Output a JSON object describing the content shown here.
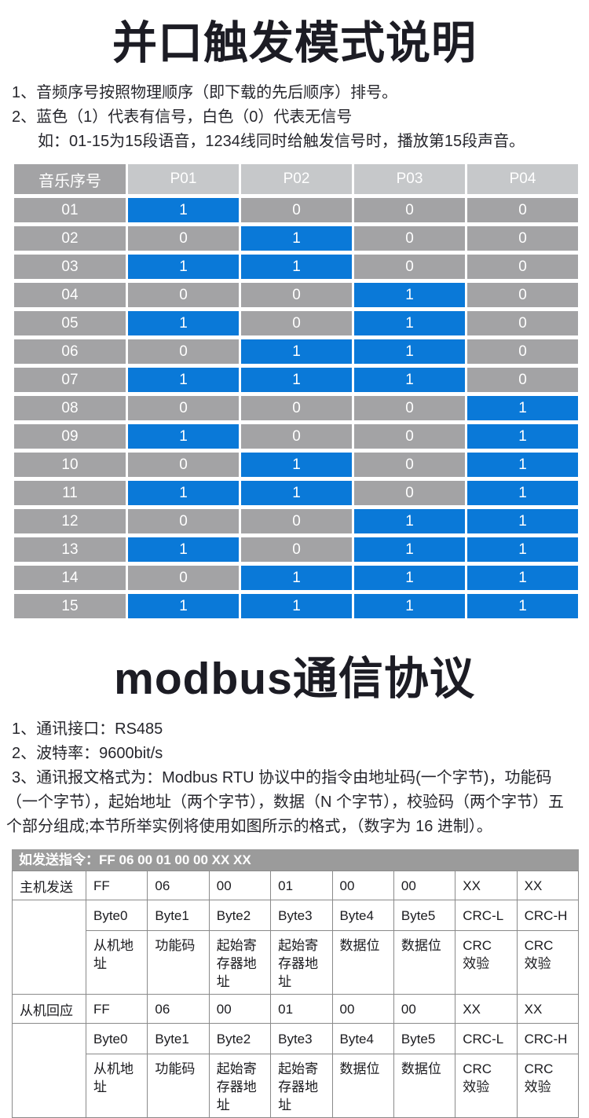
{
  "colors": {
    "signal_on": "#0a79d8",
    "signal_off": "#a3a3a5",
    "header_label_bg": "#a3a3a5",
    "header_col_bg": "#c6c8ca",
    "modbus_header_bg": "#9b9b9b",
    "table_border": "#8a8a8a",
    "text": "#1e1e24"
  },
  "section1": {
    "title": "并口触发模式说明",
    "notes": {
      "line1": "1、音频序号按照物理顺序（即下载的先后顺序）排号。",
      "line2": "2、蓝色（1）代表有信号，白色（0）代表无信号",
      "line3": "如：01-15为15段语音，1234线同时给触发信号时，播放第15段声音。"
    }
  },
  "music_table": {
    "columns": [
      "音乐序号",
      "P01",
      "P02",
      "P03",
      "P04"
    ],
    "legend": {
      "on_value": "1",
      "off_value": "0"
    },
    "rows": [
      {
        "no": "01",
        "signals": [
          1,
          0,
          0,
          0
        ]
      },
      {
        "no": "02",
        "signals": [
          0,
          1,
          0,
          0
        ]
      },
      {
        "no": "03",
        "signals": [
          1,
          1,
          0,
          0
        ]
      },
      {
        "no": "04",
        "signals": [
          0,
          0,
          1,
          0
        ]
      },
      {
        "no": "05",
        "signals": [
          1,
          0,
          1,
          0
        ]
      },
      {
        "no": "06",
        "signals": [
          0,
          1,
          1,
          0
        ]
      },
      {
        "no": "07",
        "signals": [
          1,
          1,
          1,
          0
        ]
      },
      {
        "no": "08",
        "signals": [
          0,
          0,
          0,
          1
        ]
      },
      {
        "no": "09",
        "signals": [
          1,
          0,
          0,
          1
        ]
      },
      {
        "no": "10",
        "signals": [
          0,
          1,
          0,
          1
        ]
      },
      {
        "no": "11",
        "signals": [
          1,
          1,
          0,
          1
        ]
      },
      {
        "no": "12",
        "signals": [
          0,
          0,
          1,
          1
        ]
      },
      {
        "no": "13",
        "signals": [
          1,
          0,
          1,
          1
        ]
      },
      {
        "no": "14",
        "signals": [
          0,
          1,
          1,
          1
        ]
      },
      {
        "no": "15",
        "signals": [
          1,
          1,
          1,
          1
        ]
      }
    ]
  },
  "section2": {
    "title": "modbus通信协议",
    "notes": {
      "line1": "1、通讯接口：RS485",
      "line2": "2、波特率：9600bit/s",
      "line3": "3、通讯报文格式为：Modbus RTU 协议中的指令由地址码(一个字节)，功能码（一个字节），起始地址（两个字节），数据（N 个字节），校验码（两个字节）五个部分组成;本节所举实例将使用如图所示的格式，（数字为 16 进制）。"
    }
  },
  "modbus_table": {
    "header": "如发送指令：FF 06 00 01 00 00 XX XX",
    "sections": [
      {
        "label": "主机发送",
        "bytes": [
          "FF",
          "06",
          "00",
          "01",
          "00",
          "00",
          "XX",
          "XX"
        ],
        "byte_names": [
          "Byte0",
          "Byte1",
          "Byte2",
          "Byte3",
          "Byte4",
          "Byte5",
          "CRC-L",
          "CRC-H"
        ],
        "byte_desc": [
          "从机地\n址",
          "功能码",
          "起始寄\n存器地址",
          "起始寄\n存器地址",
          "数据位",
          "数据位",
          "CRC\n效验",
          "CRC\n效验"
        ]
      },
      {
        "label": "从机回应",
        "bytes": [
          "FF",
          "06",
          "00",
          "01",
          "00",
          "00",
          "XX",
          "XX"
        ],
        "byte_names": [
          "Byte0",
          "Byte1",
          "Byte2",
          "Byte3",
          "Byte4",
          "Byte5",
          "CRC-L",
          "CRC-H"
        ],
        "byte_desc": [
          "从机地\n址",
          "功能码",
          "起始寄\n存器地址",
          "起始寄\n存器地址",
          "数据位",
          "数据位",
          "CRC\n效验",
          "CRC\n效验"
        ]
      }
    ]
  }
}
